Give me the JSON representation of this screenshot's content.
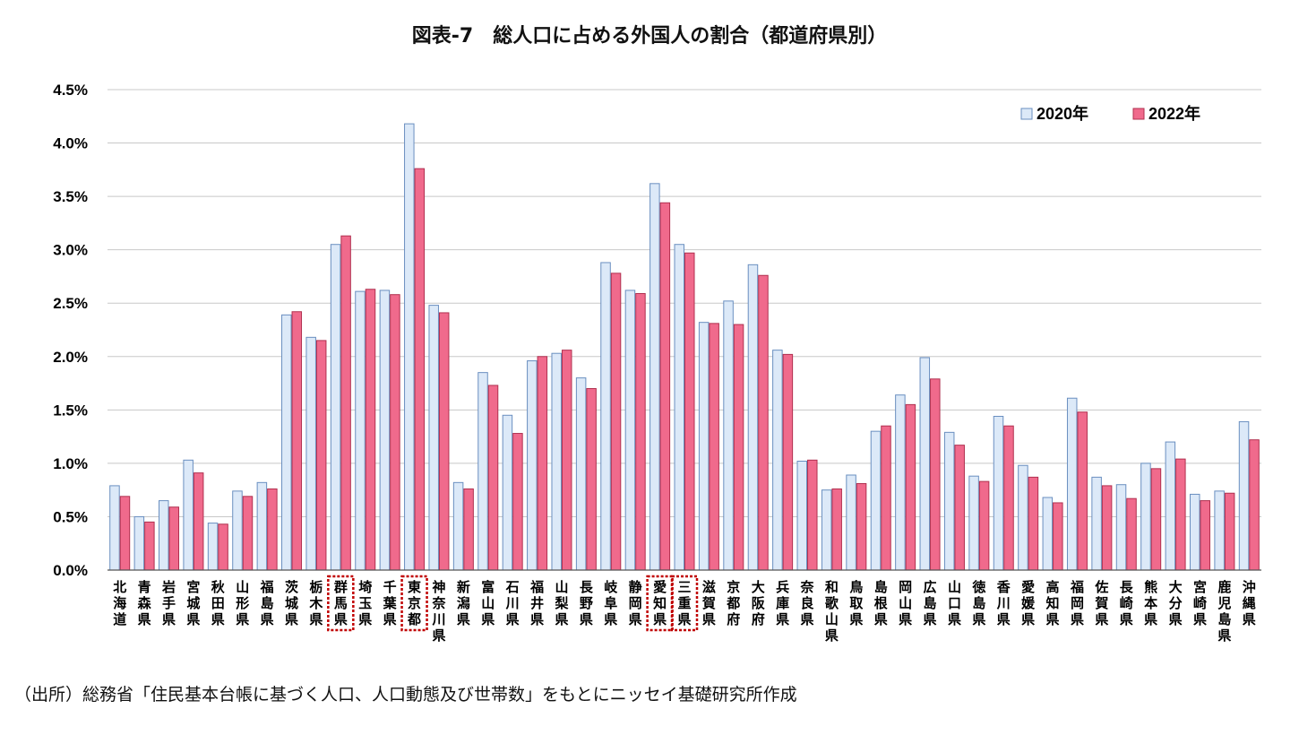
{
  "chart_data": {
    "type": "bar",
    "title": "図表-7　総人口に占める外国人の割合（都道府県別）",
    "categories": [
      "北海道",
      "青森県",
      "岩手県",
      "宮城県",
      "秋田県",
      "山形県",
      "福島県",
      "茨城県",
      "栃木県",
      "群馬県",
      "埼玉県",
      "千葉県",
      "東京都",
      "神奈川県",
      "新潟県",
      "富山県",
      "石川県",
      "福井県",
      "山梨県",
      "長野県",
      "岐阜県",
      "静岡県",
      "愛知県",
      "三重県",
      "滋賀県",
      "京都府",
      "大阪府",
      "兵庫県",
      "奈良県",
      "和歌山県",
      "鳥取県",
      "島根県",
      "岡山県",
      "広島県",
      "山口県",
      "徳島県",
      "香川県",
      "愛媛県",
      "高知県",
      "福岡県",
      "佐賀県",
      "長崎県",
      "熊本県",
      "大分県",
      "宮崎県",
      "鹿児島県",
      "沖縄県"
    ],
    "series": [
      {
        "name": "2020年",
        "color": "#dce9f8",
        "stroke": "#6a8fc0",
        "values": [
          0.79,
          0.5,
          0.65,
          1.03,
          0.44,
          0.74,
          0.82,
          2.39,
          2.18,
          3.05,
          2.61,
          2.62,
          4.18,
          2.48,
          0.82,
          1.85,
          1.45,
          1.96,
          2.03,
          1.8,
          2.88,
          2.62,
          3.62,
          3.05,
          2.32,
          2.52,
          2.86,
          2.06,
          1.02,
          0.75,
          0.89,
          1.3,
          1.64,
          1.99,
          1.29,
          0.88,
          1.44,
          0.98,
          0.68,
          1.61,
          0.87,
          0.8,
          1.0,
          1.2,
          0.71,
          0.74,
          1.39
        ]
      },
      {
        "name": "2022年",
        "color": "#f06a8c",
        "stroke": "#b0304f",
        "values": [
          0.69,
          0.45,
          0.59,
          0.91,
          0.43,
          0.69,
          0.76,
          2.42,
          2.15,
          3.13,
          2.63,
          2.58,
          3.76,
          2.41,
          0.76,
          1.73,
          1.28,
          2.0,
          2.06,
          1.7,
          2.78,
          2.59,
          3.44,
          2.97,
          2.31,
          2.3,
          2.76,
          2.02,
          1.03,
          0.76,
          0.81,
          1.35,
          1.55,
          1.79,
          1.17,
          0.83,
          1.35,
          0.87,
          0.63,
          1.48,
          0.79,
          0.67,
          0.95,
          1.04,
          0.65,
          0.72,
          1.22
        ]
      }
    ],
    "ylim": [
      0,
      4.5
    ],
    "yticks": [
      "0.0%",
      "0.5%",
      "1.0%",
      "1.5%",
      "2.0%",
      "2.5%",
      "3.0%",
      "3.5%",
      "4.0%",
      "4.5%"
    ],
    "grid": true,
    "legend_position": "top-right",
    "highlighted_categories": [
      "群馬県",
      "東京都",
      "愛知県",
      "三重県"
    ],
    "highlight_color": "#c00000"
  },
  "source_note": "（出所）総務省「住民基本台帳に基づく人口、人口動態及び世帯数」をもとにニッセイ基礎研究所作成"
}
